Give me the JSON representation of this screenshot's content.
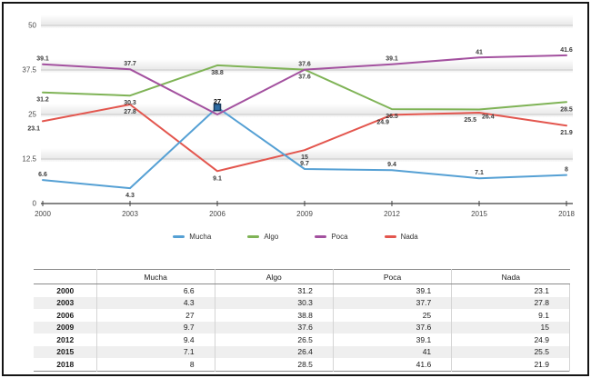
{
  "chart_data": {
    "type": "line",
    "x": [
      "2000",
      "2003",
      "2006",
      "2009",
      "2012",
      "2015",
      "2018"
    ],
    "y_ticks": [
      "0",
      "12.5",
      "25",
      "37.5",
      "50"
    ],
    "y_tick_values": [
      0,
      12.5,
      25,
      37.5,
      50
    ],
    "ylim": [
      0,
      56
    ],
    "grid": "horizontal-only",
    "legend_position": "bottom-center",
    "series": [
      {
        "name": "Mucha",
        "color": "#55a0d4",
        "values": [
          6.6,
          4.3,
          27,
          9.7,
          9.4,
          7.1,
          8
        ],
        "label_pos": [
          "a",
          "b",
          "a",
          "a",
          "a",
          "a",
          "a"
        ]
      },
      {
        "name": "Algo",
        "color": "#7fb356",
        "values": [
          31.2,
          30.3,
          38.8,
          37.6,
          26.5,
          26.4,
          28.5
        ],
        "label_pos": [
          "b",
          "b",
          "b",
          "b",
          "b",
          "br",
          "b"
        ]
      },
      {
        "name": "Poca",
        "color": "#a3519f",
        "values": [
          39.1,
          37.7,
          25,
          37.6,
          39.1,
          41,
          41.6
        ],
        "label_pos": [
          "a",
          "a",
          "h",
          "a",
          "a",
          "a",
          "a"
        ]
      },
      {
        "name": "Nada",
        "color": "#e3564e",
        "values": [
          23.1,
          27.8,
          9.1,
          15,
          24.9,
          25.5,
          21.9
        ],
        "label_pos": [
          "bl",
          "b",
          "b",
          "b",
          "bl",
          "bl",
          "b"
        ]
      }
    ],
    "highlight": {
      "series": "Mucha",
      "x": "2006",
      "value_label": "27",
      "marker": "dark-square"
    }
  },
  "table": {
    "headers": [
      "",
      "Mucha",
      "Algo",
      "Poca",
      "Nada"
    ],
    "rows": [
      {
        "year": "2000",
        "values": [
          "6.6",
          "31.2",
          "39.1",
          "23.1"
        ]
      },
      {
        "year": "2003",
        "values": [
          "4.3",
          "30.3",
          "37.7",
          "27.8"
        ]
      },
      {
        "year": "2006",
        "values": [
          "27",
          "38.8",
          "25",
          "9.1"
        ]
      },
      {
        "year": "2009",
        "values": [
          "9.7",
          "37.6",
          "37.6",
          "15"
        ]
      },
      {
        "year": "2012",
        "values": [
          "9.4",
          "26.5",
          "39.1",
          "24.9"
        ]
      },
      {
        "year": "2015",
        "values": [
          "7.1",
          "26.4",
          "41",
          "25.5"
        ]
      },
      {
        "year": "2018",
        "values": [
          "8",
          "28.5",
          "41.6",
          "21.9"
        ]
      }
    ]
  },
  "colors": {
    "gridline": "#c6c6c6",
    "band": "#e8e8e8",
    "axis": "#3f3f3f",
    "tick_text": "#484848",
    "data_label": "#3a3a3a",
    "highlight_marker_fill": "#2e6da4",
    "highlight_marker_stroke": "#1a3c5e",
    "table_alt_row": "#efefef"
  }
}
